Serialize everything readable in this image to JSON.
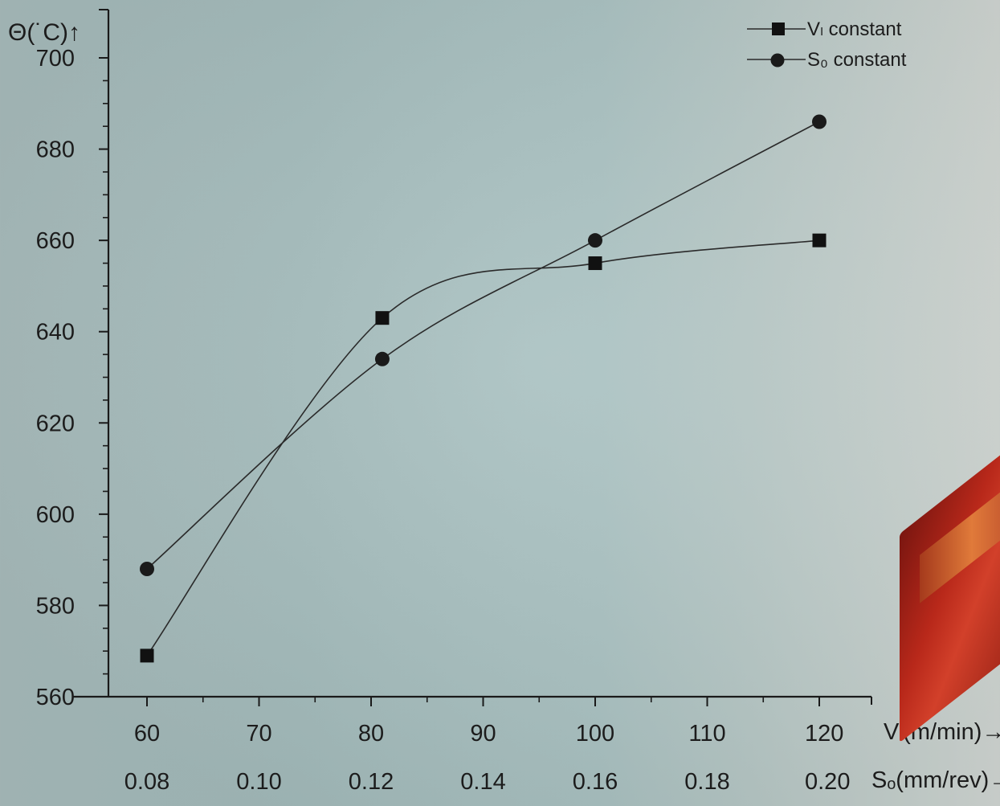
{
  "chart_data": {
    "type": "line",
    "y_axis_label": "Θ(˙C)↑",
    "ylim": [
      560,
      700
    ],
    "y_ticks": [
      560,
      580,
      600,
      620,
      640,
      660,
      680,
      700
    ],
    "x_axis_primary": {
      "ticks": [
        "60",
        "70",
        "80",
        "90",
        "100",
        "110",
        "120"
      ],
      "label": "Vₗ(m/min)→",
      "range": [
        60,
        120
      ]
    },
    "x_axis_secondary": {
      "ticks": [
        "0.08",
        "0.10",
        "0.12",
        "0.14",
        "0.16",
        "0.18",
        "0.20"
      ],
      "label": "Sₒ(mm/rev)→"
    },
    "series": [
      {
        "name": "Vₗ constant",
        "marker": "square",
        "x": [
          60,
          81,
          100,
          120
        ],
        "y": [
          569,
          643,
          655,
          660
        ]
      },
      {
        "name": "S₀ constant",
        "marker": "circle",
        "x": [
          60,
          81,
          100,
          120
        ],
        "y": [
          588,
          634,
          660,
          686
        ]
      }
    ],
    "legend": {
      "position": "top-right"
    },
    "grid": false
  }
}
